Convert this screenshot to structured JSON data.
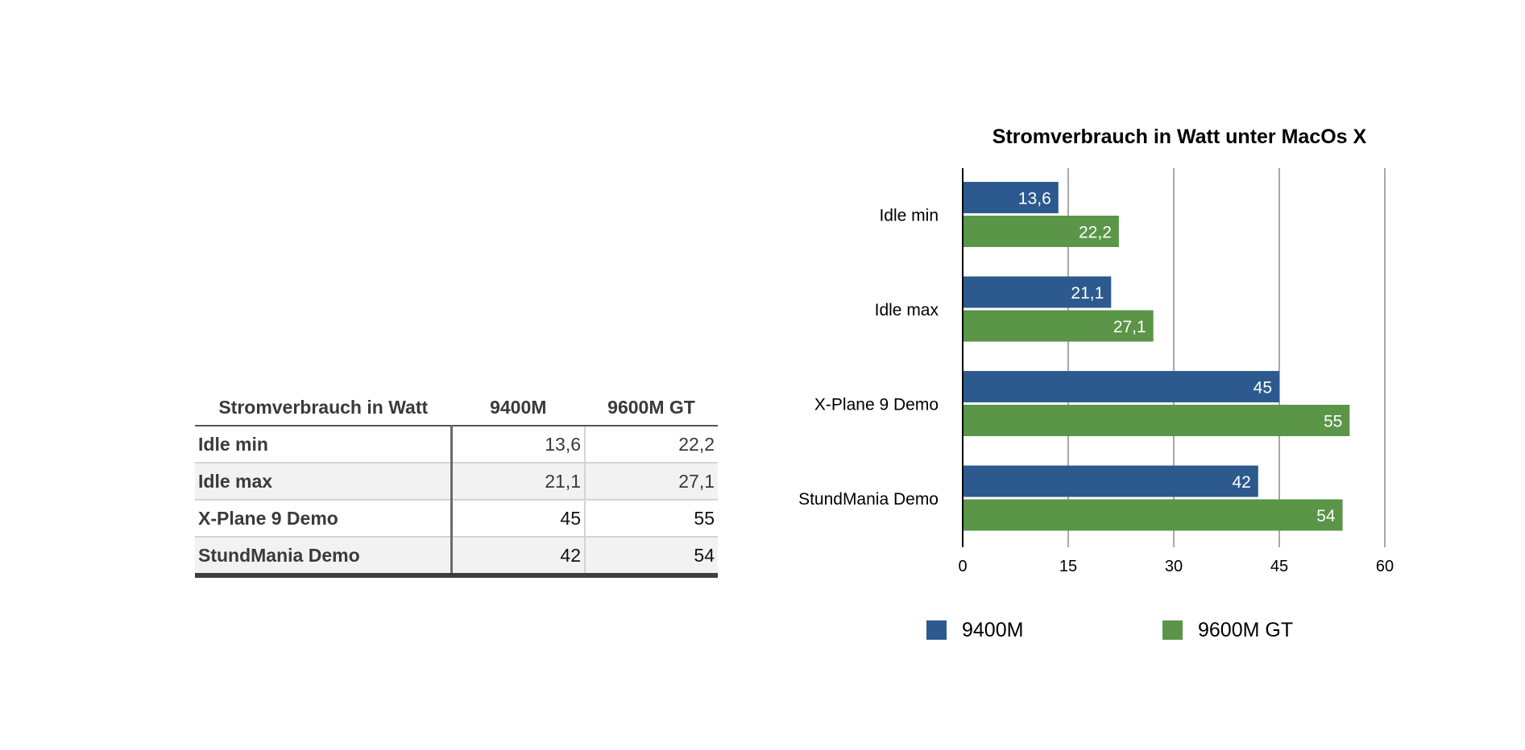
{
  "table": {
    "headers": [
      "Stromverbrauch in Watt",
      "9400M",
      "9600M GT"
    ],
    "rows": [
      {
        "label": "Idle min",
        "v1": "13,6",
        "v2": "22,2"
      },
      {
        "label": "Idle max",
        "v1": "21,1",
        "v2": "27,1"
      },
      {
        "label": "X-Plane 9 Demo",
        "v1": "45",
        "v2": "55"
      },
      {
        "label": "StundMania Demo",
        "v1": "42",
        "v2": "54"
      }
    ]
  },
  "chart_data": {
    "type": "bar",
    "orientation": "horizontal",
    "title": "Stromverbrauch in Watt unter MacOs X",
    "categories": [
      "Idle min",
      "Idle max",
      "X-Plane 9 Demo",
      "StundMania Demo"
    ],
    "series": [
      {
        "name": "9400M",
        "color": "#2d5a8e",
        "values": [
          13.6,
          21.1,
          45,
          42
        ],
        "labels": [
          "13,6",
          "21,1",
          "45",
          "42"
        ]
      },
      {
        "name": "9600M GT",
        "color": "#5a9548",
        "values": [
          22.2,
          27.1,
          55,
          54
        ],
        "labels": [
          "22,2",
          "27,1",
          "55",
          "54"
        ]
      }
    ],
    "xlim": [
      0,
      60
    ],
    "xticks": [
      "0",
      "15",
      "30",
      "45",
      "60"
    ],
    "grid": true,
    "legend": "bottom"
  }
}
